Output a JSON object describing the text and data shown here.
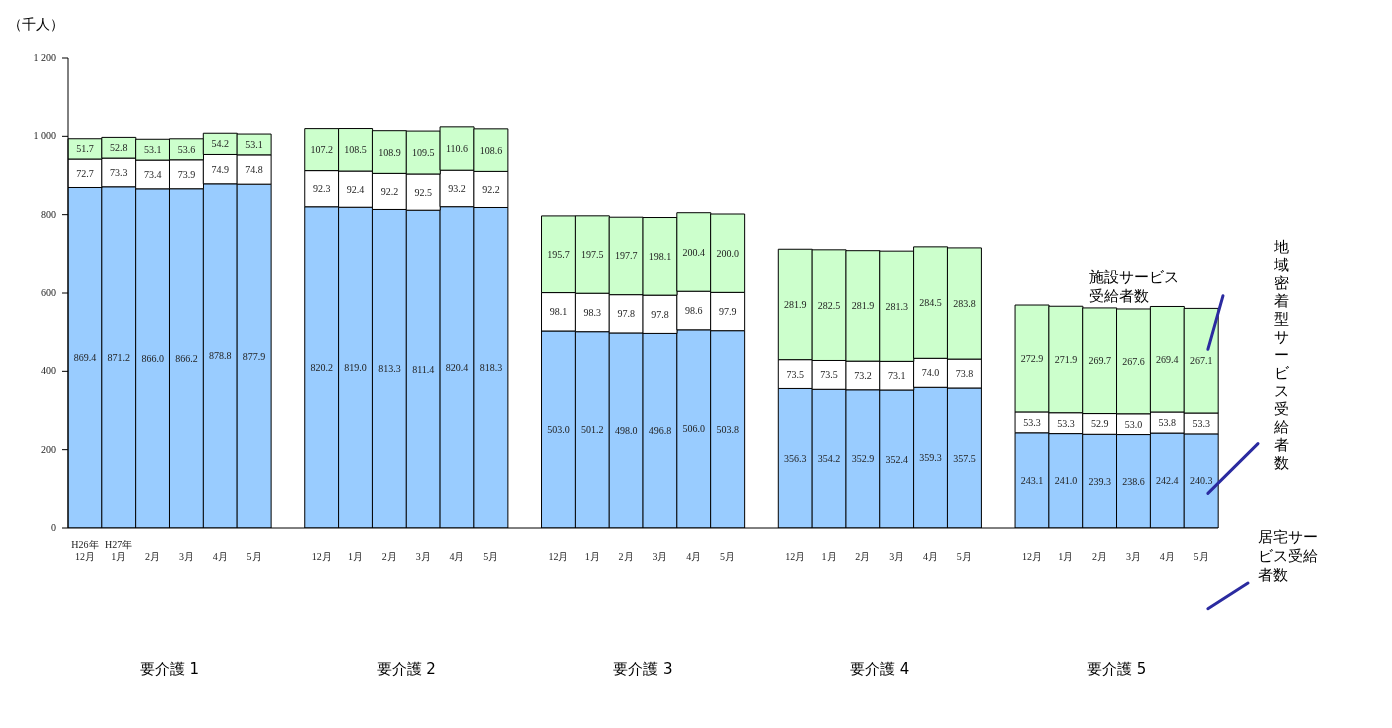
{
  "chart_data": {
    "type": "bar",
    "stacked": true,
    "ylabel": "（千人）",
    "categories": [
      "H26年\n12月",
      "H27年\n1月",
      "2月",
      "3月",
      "4月",
      "5月",
      null,
      "12月",
      "1月",
      "2月",
      "3月",
      "4月",
      "5月",
      null,
      "12月",
      "1月",
      "2月",
      "3月",
      "4月",
      "5月",
      null,
      "12月",
      "1月",
      "2月",
      "3月",
      "4月",
      "5月",
      null,
      "12月",
      "1月",
      "2月",
      "3月",
      "4月",
      "5月"
    ],
    "series": [
      {
        "name": "居宅サービス受給者数",
        "color": "#99ccff",
        "values": [
          869.4,
          871.2,
          866.0,
          866.2,
          878.8,
          877.9,
          null,
          820.2,
          819.0,
          813.3,
          811.4,
          820.4,
          818.3,
          null,
          503.0,
          501.2,
          498.0,
          496.8,
          506.0,
          503.8,
          null,
          356.3,
          354.2,
          352.9,
          352.4,
          359.3,
          357.5,
          null,
          243.1,
          241.0,
          239.3,
          238.6,
          242.4,
          240.3
        ],
        "value_labels": [
          "869.4",
          "871.2",
          "866.0",
          "866.2",
          "878.8",
          "877.9",
          null,
          "820.2",
          "819.0",
          "813.3",
          "811.4",
          "820.4",
          "818.3",
          null,
          "503.0",
          "501.2",
          "498.0",
          "496.8",
          "506.0",
          "503.8",
          null,
          "356.3",
          "354.2",
          "352.9",
          "352.4",
          "359.3",
          "357.5",
          null,
          "243.1",
          "241.0",
          "239.3",
          "238.6",
          "242.4",
          "240.3"
        ]
      },
      {
        "name": "地域密着型サービス受給者数",
        "color": "#ffffff",
        "values": [
          72.7,
          73.3,
          73.4,
          73.9,
          74.9,
          74.8,
          null,
          92.3,
          92.4,
          92.2,
          92.5,
          93.2,
          92.2,
          null,
          98.1,
          98.3,
          97.8,
          97.8,
          98.6,
          97.9,
          null,
          73.5,
          73.5,
          73.2,
          73.1,
          74.0,
          73.8,
          null,
          53.3,
          53.3,
          52.9,
          53.0,
          53.8,
          53.3
        ],
        "value_labels": [
          "72.7",
          "73.3",
          "73.4",
          "73.9",
          "74.9",
          "74.8",
          null,
          "92.3",
          "92.4",
          "92.2",
          "92.5",
          "93.2",
          "92.2",
          null,
          "98.1",
          "98.3",
          "97.8",
          "97.8",
          "98.6",
          "97.9",
          null,
          "73.5",
          "73.5",
          "73.2",
          "73.1",
          "74.0",
          "73.8",
          null,
          "53.3",
          "53.3",
          "52.9",
          "53.0",
          "53.8",
          "53.3"
        ]
      },
      {
        "name": "施設サービス受給者数",
        "color": "#ccffcc",
        "values": [
          51.7,
          52.8,
          53.1,
          53.6,
          54.2,
          53.1,
          null,
          107.2,
          108.5,
          108.9,
          109.5,
          110.6,
          108.6,
          null,
          195.7,
          197.5,
          197.7,
          198.1,
          200.4,
          200.0,
          null,
          281.9,
          282.5,
          281.9,
          281.3,
          284.5,
          283.8,
          null,
          272.9,
          271.9,
          269.7,
          267.6,
          269.4,
          267.1
        ],
        "value_labels": [
          "51.7",
          "52.8",
          "53.1",
          "53.6",
          "54.2",
          "53.1",
          null,
          "107.2",
          "108.5",
          "108.9",
          "109.5",
          "110.6",
          "108.6",
          null,
          "195.7",
          "197.5",
          "197.7",
          "198.1",
          "200.4",
          "200.0",
          null,
          "281.9",
          "282.5",
          "281.9",
          "281.3",
          "284.5",
          "283.8",
          null,
          "272.9",
          "271.9",
          "269.7",
          "267.6",
          "269.4",
          "267.1"
        ]
      }
    ],
    "ylim": [
      0,
      1200
    ],
    "yticks": [
      0,
      200,
      400,
      600,
      800,
      {
        "value": 1000,
        "label": "1 000"
      },
      {
        "value": 1200,
        "label": "1 200"
      }
    ],
    "grid": false,
    "legend": false,
    "annotations": [
      "要介護 1",
      "要介護 2",
      "要介護 3",
      "要介護 4",
      "要介護 5"
    ]
  }
}
